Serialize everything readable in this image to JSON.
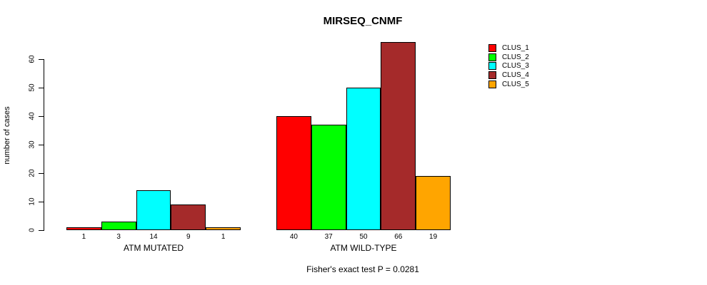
{
  "chart_data": {
    "type": "bar",
    "title": "MIRSEQ_CNMF",
    "ylabel": "number of cases",
    "xlabel": "",
    "yticks": [
      0,
      10,
      20,
      30,
      40,
      50,
      60
    ],
    "ylim": [
      0,
      66
    ],
    "grid": false,
    "legend_position": "right",
    "categories": [
      "ATM MUTATED",
      "ATM WILD-TYPE"
    ],
    "series": [
      {
        "name": "CLUS_1",
        "color": "#FF0000",
        "values": [
          1,
          40
        ]
      },
      {
        "name": "CLUS_2",
        "color": "#00FF00",
        "values": [
          3,
          37
        ]
      },
      {
        "name": "CLUS_3",
        "color": "#00FFFF",
        "values": [
          14,
          50
        ]
      },
      {
        "name": "CLUS_4",
        "color": "#A52A2A",
        "values": [
          9,
          66
        ]
      },
      {
        "name": "CLUS_5",
        "color": "#FFA500",
        "values": [
          1,
          19
        ]
      }
    ],
    "bar_value_labels_shown": true,
    "annotation": "Fisher's exact test P = 0.0281",
    "axis_color": "#000000",
    "bar_border_color": "#000000"
  }
}
